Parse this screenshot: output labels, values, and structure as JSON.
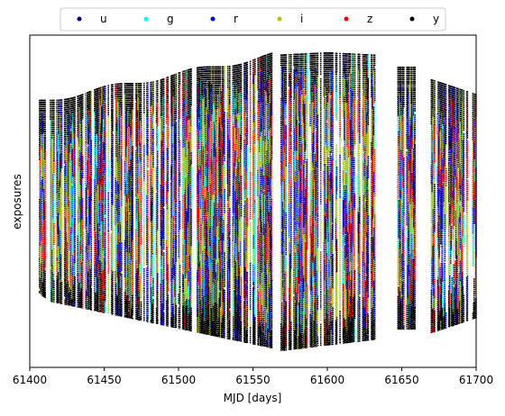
{
  "chart_data": {
    "type": "scatter",
    "xlabel": "MJD [days]",
    "ylabel": "exposures",
    "xlim": [
      61400,
      61700
    ],
    "xticks": [
      "61400",
      "61450",
      "61500",
      "61550",
      "61600",
      "61650",
      "61700"
    ],
    "yticks_visible": false,
    "grid": false,
    "legend": {
      "placement": "top-center",
      "columns": 6,
      "entries": [
        {
          "name": "u",
          "color": "#00008b"
        },
        {
          "name": "g",
          "color": "#00ffff"
        },
        {
          "name": "r",
          "color": "#0000ff"
        },
        {
          "name": "i",
          "color": "#bfbf00"
        },
        {
          "name": "z",
          "color": "#ff0000"
        },
        {
          "name": "y",
          "color": "#000000"
        }
      ]
    },
    "observing_windows_mjd": [
      [
        61405,
        61563
      ],
      [
        61569,
        61632
      ],
      [
        61646,
        61659
      ],
      [
        61670,
        61700
      ]
    ],
    "notes": "Dense per-night exposure sequences; individual exposure values are not labeled."
  }
}
